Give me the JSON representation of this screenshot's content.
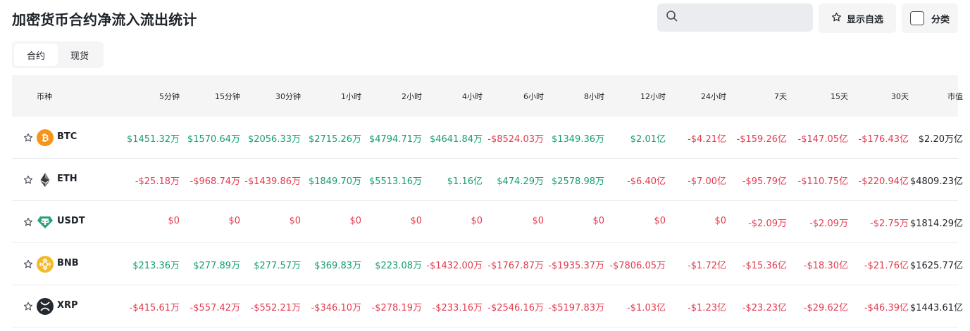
{
  "page": {
    "title": "加密货币合约净流入流出统计"
  },
  "search": {
    "placeholder": "",
    "icon": "search-icon"
  },
  "toolbar": {
    "favorites_label": "显示自选",
    "category_label": "分类"
  },
  "tabs": [
    {
      "label": "合约",
      "active": true
    },
    {
      "label": "现货",
      "active": false
    }
  ],
  "colors": {
    "positive": "#12a06e",
    "negative": "#e23b4f",
    "header_bg": "#f5f5f5"
  },
  "table": {
    "headers": [
      "币种",
      "5分钟",
      "15分钟",
      "30分钟",
      "1小时",
      "2小时",
      "4小时",
      "6小时",
      "8小时",
      "12小时",
      "24小时",
      "7天",
      "15天",
      "30天",
      "市值"
    ],
    "rows": [
      {
        "symbol": "BTC",
        "icon": "btc-icon",
        "values": [
          "$1451.32万",
          "$1570.64万",
          "$2056.33万",
          "$2715.26万",
          "$4794.71万",
          "$4641.84万",
          "-$8524.03万",
          "$1349.36万",
          "$2.01亿",
          "-$4.21亿",
          "-$159.26亿",
          "-$147.05亿",
          "-$176.43亿"
        ],
        "market_cap": "$2.20万亿"
      },
      {
        "symbol": "ETH",
        "icon": "eth-icon",
        "values": [
          "-$25.18万",
          "-$968.74万",
          "-$1439.86万",
          "$1849.70万",
          "$5513.16万",
          "$1.16亿",
          "$474.29万",
          "$2578.98万",
          "-$6.40亿",
          "-$7.00亿",
          "-$95.79亿",
          "-$110.75亿",
          "-$220.94亿"
        ],
        "market_cap": "$4809.23亿"
      },
      {
        "symbol": "USDT",
        "icon": "usdt-icon",
        "values": [
          "$0",
          "$0",
          "$0",
          "$0",
          "$0",
          "$0",
          "$0",
          "$0",
          "$0",
          "$0",
          "-$2.09万",
          "-$2.09万",
          "-$2.75万"
        ],
        "market_cap": "$1814.29亿"
      },
      {
        "symbol": "BNB",
        "icon": "bnb-icon",
        "values": [
          "$213.36万",
          "$277.89万",
          "$277.57万",
          "$369.83万",
          "$223.08万",
          "-$1432.00万",
          "-$1767.87万",
          "-$1935.37万",
          "-$7806.05万",
          "-$1.72亿",
          "-$15.36亿",
          "-$18.30亿",
          "-$21.76亿"
        ],
        "market_cap": "$1625.77亿"
      },
      {
        "symbol": "XRP",
        "icon": "xrp-icon",
        "values": [
          "-$415.61万",
          "-$557.42万",
          "-$552.21万",
          "-$346.10万",
          "-$278.19万",
          "-$233.16万",
          "-$2546.16万",
          "-$5197.83万",
          "-$1.03亿",
          "-$1.23亿",
          "-$23.23亿",
          "-$29.62亿",
          "-$46.39亿"
        ],
        "market_cap": "$1443.61亿"
      }
    ]
  }
}
